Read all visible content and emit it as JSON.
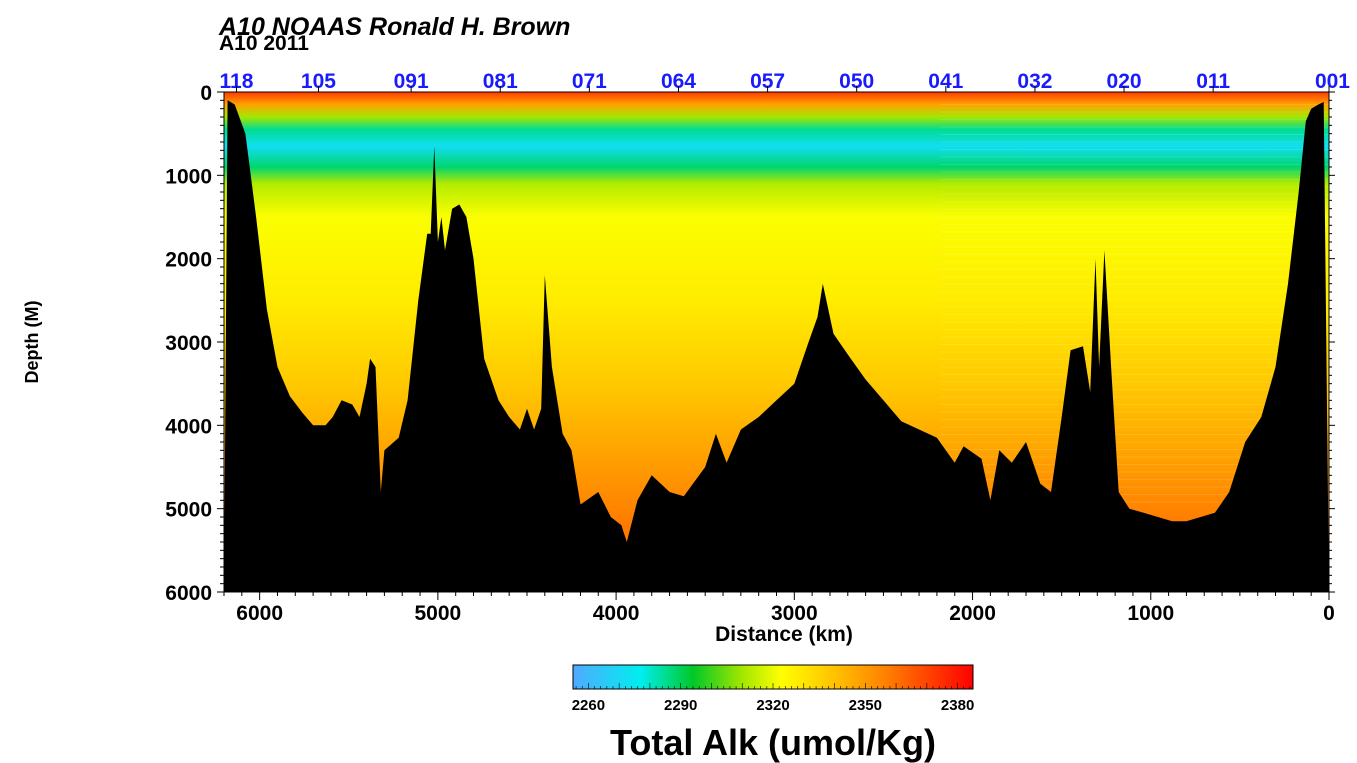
{
  "chart_data": {
    "type": "heatmap",
    "title": "A10  NOAAS Ronald H. Brown",
    "subtitle": "A10 2011",
    "xlabel": "Distance (km)",
    "ylabel": "Depth (M)",
    "xlim": [
      6200,
      0
    ],
    "ylim": [
      6000,
      0
    ],
    "x_ticks": [
      6000,
      5000,
      4000,
      3000,
      2000,
      1000,
      0
    ],
    "y_ticks": [
      0,
      1000,
      2000,
      3000,
      4000,
      5000,
      6000
    ],
    "x_tick_labels": [
      "6000",
      "5000",
      "4000",
      "3000",
      "2000",
      "1000",
      "0"
    ],
    "y_tick_labels": [
      "0",
      "1000",
      "2000",
      "3000",
      "4000",
      "5000",
      "6000"
    ],
    "stations": [
      {
        "label": "118",
        "distance": 6130
      },
      {
        "label": "105",
        "distance": 5670
      },
      {
        "label": "091",
        "distance": 5150
      },
      {
        "label": "081",
        "distance": 4650
      },
      {
        "label": "071",
        "distance": 4150
      },
      {
        "label": "064",
        "distance": 3650
      },
      {
        "label": "057",
        "distance": 3150
      },
      {
        "label": "050",
        "distance": 2650
      },
      {
        "label": "041",
        "distance": 2150
      },
      {
        "label": "032",
        "distance": 1650
      },
      {
        "label": "020",
        "distance": 1150
      },
      {
        "label": "011",
        "distance": 650
      },
      {
        "label": "001",
        "distance": 0
      }
    ],
    "colorbar": {
      "label": "Total Alk (umol/Kg)",
      "range": [
        2255,
        2385
      ],
      "ticks": [
        2260,
        2290,
        2320,
        2350,
        2380
      ],
      "tick_labels": [
        "2260",
        "2290",
        "2320",
        "2350",
        "2380"
      ]
    },
    "field_profile": [
      {
        "depth": 0,
        "value": 2372
      },
      {
        "depth": 150,
        "value": 2348
      },
      {
        "depth": 300,
        "value": 2310
      },
      {
        "depth": 450,
        "value": 2285
      },
      {
        "depth": 650,
        "value": 2272
      },
      {
        "depth": 900,
        "value": 2288
      },
      {
        "depth": 1100,
        "value": 2312
      },
      {
        "depth": 1500,
        "value": 2322
      },
      {
        "depth": 2500,
        "value": 2328
      },
      {
        "depth": 3500,
        "value": 2338
      },
      {
        "depth": 4500,
        "value": 2350
      },
      {
        "depth": 5200,
        "value": 2358
      }
    ],
    "bathymetry": [
      [
        6200,
        6000
      ],
      [
        6180,
        100
      ],
      [
        6140,
        150
      ],
      [
        6080,
        500
      ],
      [
        6020,
        1500
      ],
      [
        5960,
        2600
      ],
      [
        5900,
        3300
      ],
      [
        5830,
        3650
      ],
      [
        5760,
        3850
      ],
      [
        5700,
        4000
      ],
      [
        5630,
        4000
      ],
      [
        5590,
        3900
      ],
      [
        5540,
        3700
      ],
      [
        5480,
        3750
      ],
      [
        5440,
        3900
      ],
      [
        5400,
        3500
      ],
      [
        5380,
        3200
      ],
      [
        5350,
        3300
      ],
      [
        5320,
        4800
      ],
      [
        5300,
        4300
      ],
      [
        5220,
        4150
      ],
      [
        5170,
        3700
      ],
      [
        5110,
        2500
      ],
      [
        5060,
        1700
      ],
      [
        5040,
        1700
      ],
      [
        5020,
        650
      ],
      [
        5000,
        1800
      ],
      [
        4980,
        1500
      ],
      [
        4960,
        1900
      ],
      [
        4920,
        1400
      ],
      [
        4880,
        1350
      ],
      [
        4840,
        1500
      ],
      [
        4800,
        2000
      ],
      [
        4740,
        3200
      ],
      [
        4660,
        3700
      ],
      [
        4600,
        3900
      ],
      [
        4540,
        4050
      ],
      [
        4500,
        3800
      ],
      [
        4460,
        4050
      ],
      [
        4420,
        3800
      ],
      [
        4400,
        2200
      ],
      [
        4360,
        3300
      ],
      [
        4300,
        4100
      ],
      [
        4250,
        4300
      ],
      [
        4200,
        4950
      ],
      [
        4100,
        4800
      ],
      [
        4030,
        5100
      ],
      [
        3970,
        5200
      ],
      [
        3940,
        5400
      ],
      [
        3880,
        4900
      ],
      [
        3800,
        4600
      ],
      [
        3700,
        4800
      ],
      [
        3620,
        4850
      ],
      [
        3500,
        4500
      ],
      [
        3440,
        4100
      ],
      [
        3380,
        4450
      ],
      [
        3300,
        4050
      ],
      [
        3200,
        3900
      ],
      [
        3100,
        3700
      ],
      [
        3000,
        3500
      ],
      [
        2920,
        3000
      ],
      [
        2870,
        2700
      ],
      [
        2840,
        2300
      ],
      [
        2780,
        2900
      ],
      [
        2700,
        3150
      ],
      [
        2600,
        3450
      ],
      [
        2500,
        3700
      ],
      [
        2400,
        3950
      ],
      [
        2300,
        4050
      ],
      [
        2200,
        4150
      ],
      [
        2100,
        4450
      ],
      [
        2050,
        4250
      ],
      [
        1950,
        4400
      ],
      [
        1900,
        4900
      ],
      [
        1850,
        4300
      ],
      [
        1780,
        4450
      ],
      [
        1700,
        4200
      ],
      [
        1620,
        4700
      ],
      [
        1560,
        4800
      ],
      [
        1500,
        3900
      ],
      [
        1450,
        3100
      ],
      [
        1380,
        3050
      ],
      [
        1340,
        3600
      ],
      [
        1310,
        2000
      ],
      [
        1290,
        3300
      ],
      [
        1260,
        1900
      ],
      [
        1220,
        3400
      ],
      [
        1180,
        4800
      ],
      [
        1120,
        5000
      ],
      [
        1040,
        5050
      ],
      [
        960,
        5100
      ],
      [
        880,
        5150
      ],
      [
        800,
        5150
      ],
      [
        720,
        5100
      ],
      [
        640,
        5050
      ],
      [
        560,
        4800
      ],
      [
        470,
        4200
      ],
      [
        380,
        3900
      ],
      [
        300,
        3300
      ],
      [
        230,
        2300
      ],
      [
        170,
        1200
      ],
      [
        130,
        350
      ],
      [
        100,
        200
      ],
      [
        60,
        150
      ],
      [
        30,
        120
      ],
      [
        0,
        6000
      ]
    ],
    "grid": false,
    "legend": "bottom-center colorbar"
  }
}
